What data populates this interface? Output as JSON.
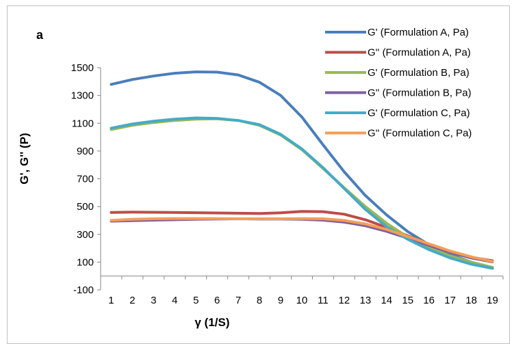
{
  "chart_data": {
    "type": "line",
    "panel_label": "a",
    "xlabel": "γ (1/S)",
    "ylabel": "G', G'' (P)",
    "x": [
      1,
      2,
      3,
      4,
      5,
      6,
      7,
      8,
      9,
      10,
      11,
      12,
      13,
      14,
      15,
      16,
      17,
      18,
      19
    ],
    "ylim": [
      -100,
      1500
    ],
    "yticks": [
      -100,
      100,
      300,
      500,
      700,
      900,
      1100,
      1300,
      1500
    ],
    "legend_position": "top-right",
    "series": [
      {
        "name": "G' (Formulation A, Pa)",
        "color": "#4a7ebb",
        "values": [
          1380,
          1415,
          1440,
          1460,
          1470,
          1468,
          1448,
          1395,
          1300,
          1145,
          945,
          750,
          580,
          440,
          320,
          225,
          155,
          100,
          60
        ]
      },
      {
        "name": "G'' (Formulation A, Pa)",
        "color": "#be4b48",
        "values": [
          458,
          460,
          459,
          458,
          456,
          454,
          452,
          450,
          455,
          465,
          463,
          445,
          405,
          350,
          290,
          230,
          175,
          135,
          110
        ]
      },
      {
        "name": "G' (Formulation B, Pa)",
        "color": "#98b954",
        "values": [
          1055,
          1085,
          1105,
          1120,
          1130,
          1132,
          1120,
          1085,
          1015,
          910,
          775,
          635,
          500,
          380,
          280,
          205,
          145,
          100,
          62
        ]
      },
      {
        "name": "G'' (Formulation B, Pa)",
        "color": "#7d60a0",
        "values": [
          395,
          398,
          402,
          405,
          408,
          410,
          412,
          410,
          410,
          408,
          402,
          388,
          362,
          322,
          272,
          220,
          170,
          130,
          102
        ]
      },
      {
        "name": "G' (Formulation C, Pa)",
        "color": "#46aac5",
        "values": [
          1065,
          1095,
          1115,
          1130,
          1138,
          1135,
          1120,
          1090,
          1020,
          915,
          780,
          630,
          480,
          355,
          265,
          190,
          130,
          85,
          55
        ]
      },
      {
        "name": "G'' (Formulation C, Pa)",
        "color": "#f59d56",
        "values": [
          400,
          408,
          412,
          414,
          414,
          413,
          412,
          412,
          412,
          413,
          412,
          400,
          375,
          335,
          285,
          232,
          180,
          138,
          105
        ]
      }
    ]
  }
}
